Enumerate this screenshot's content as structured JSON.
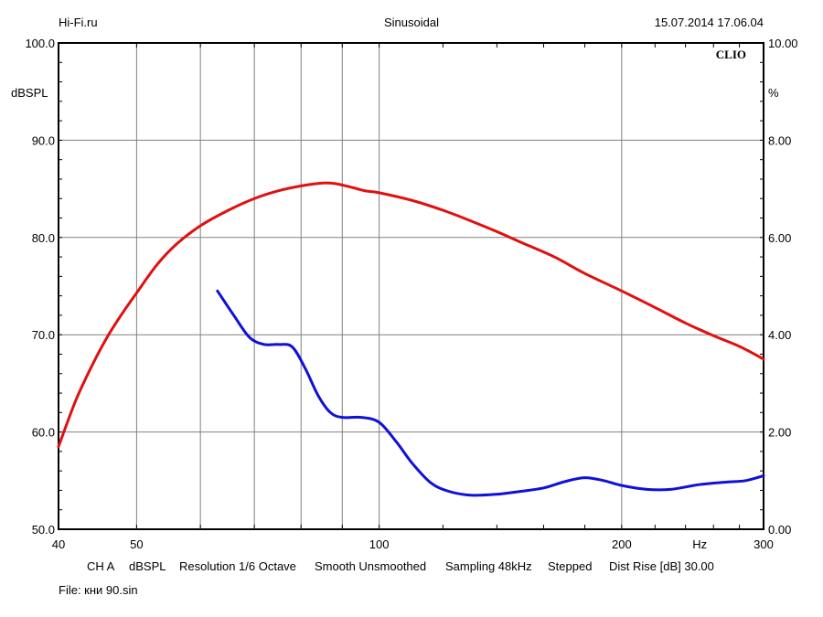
{
  "header": {
    "left": "Hi-Fi.ru",
    "center": "Sinusoidal",
    "right": "15.07.2014 17.06.04"
  },
  "brand": "CLIO",
  "footer": {
    "settings": [
      "CH A",
      "dBSPL",
      "Resolution 1/6 Octave",
      "Smooth Unsmoothed",
      "Sampling 48kHz",
      "Stepped",
      "Dist Rise [dB] 30.00"
    ],
    "file": "File: кни 90.sin"
  },
  "chart_data": {
    "type": "line",
    "title": "Sinusoidal",
    "x_scale": "log",
    "xlim": [
      40,
      300
    ],
    "x_ticks": [
      {
        "value": 40,
        "label": "40"
      },
      {
        "value": 50,
        "label": "50"
      },
      {
        "value": 100,
        "label": "100"
      },
      {
        "value": 200,
        "label": "200"
      },
      {
        "value": 300,
        "label": "300"
      }
    ],
    "x_unit_label": "Hz",
    "x_unit_label_at": 250,
    "x_gridlines": [
      50,
      60,
      70,
      80,
      90,
      100,
      200
    ],
    "y_left": {
      "label": "dBSPL",
      "lim": [
        50,
        100
      ],
      "ticks": [
        {
          "value": 100,
          "label": "100.0"
        },
        {
          "value": 90,
          "label": "90.0"
        },
        {
          "value": 80,
          "label": "80.0"
        },
        {
          "value": 70,
          "label": "70.0"
        },
        {
          "value": 60,
          "label": "60.0"
        },
        {
          "value": 50,
          "label": "50.0"
        }
      ]
    },
    "y_right": {
      "label": "%",
      "lim": [
        0,
        10
      ],
      "ticks": [
        {
          "value": 10,
          "label": "10.00"
        },
        {
          "value": 8,
          "label": "8.00"
        },
        {
          "value": 6,
          "label": "6.00"
        },
        {
          "value": 4,
          "label": "4.00"
        },
        {
          "value": 2,
          "label": "2.00"
        },
        {
          "value": 0,
          "label": "0.00"
        }
      ]
    },
    "grid": true,
    "series": [
      {
        "axis": "left",
        "color": "#e01010",
        "points": [
          [
            40,
            58.5
          ],
          [
            42,
            63.2
          ],
          [
            44,
            66.8
          ],
          [
            46,
            69.8
          ],
          [
            48,
            72.2
          ],
          [
            50,
            74.3
          ],
          [
            53,
            77.2
          ],
          [
            56,
            79.3
          ],
          [
            60,
            81.2
          ],
          [
            65,
            82.8
          ],
          [
            70,
            84.0
          ],
          [
            75,
            84.8
          ],
          [
            80,
            85.3
          ],
          [
            85,
            85.6
          ],
          [
            88,
            85.55
          ],
          [
            92,
            85.2
          ],
          [
            96,
            84.8
          ],
          [
            100,
            84.6
          ],
          [
            110,
            83.8
          ],
          [
            120,
            82.8
          ],
          [
            130,
            81.7
          ],
          [
            140,
            80.6
          ],
          [
            150,
            79.5
          ],
          [
            165,
            78.0
          ],
          [
            180,
            76.3
          ],
          [
            200,
            74.5
          ],
          [
            220,
            72.8
          ],
          [
            240,
            71.2
          ],
          [
            260,
            69.9
          ],
          [
            280,
            68.8
          ],
          [
            300,
            67.5
          ]
        ]
      },
      {
        "axis": "right",
        "color": "#1010d8",
        "points": [
          [
            63,
            4.9
          ],
          [
            66,
            4.4
          ],
          [
            69,
            3.95
          ],
          [
            72,
            3.8
          ],
          [
            75,
            3.8
          ],
          [
            78,
            3.75
          ],
          [
            81,
            3.3
          ],
          [
            84,
            2.75
          ],
          [
            87,
            2.4
          ],
          [
            90,
            2.3
          ],
          [
            95,
            2.3
          ],
          [
            100,
            2.2
          ],
          [
            105,
            1.8
          ],
          [
            110,
            1.35
          ],
          [
            116,
            0.95
          ],
          [
            122,
            0.78
          ],
          [
            130,
            0.7
          ],
          [
            140,
            0.72
          ],
          [
            150,
            0.78
          ],
          [
            160,
            0.85
          ],
          [
            170,
            0.98
          ],
          [
            180,
            1.06
          ],
          [
            190,
            1.0
          ],
          [
            200,
            0.9
          ],
          [
            215,
            0.82
          ],
          [
            230,
            0.82
          ],
          [
            250,
            0.92
          ],
          [
            270,
            0.97
          ],
          [
            285,
            1.0
          ],
          [
            300,
            1.1
          ]
        ]
      }
    ]
  }
}
